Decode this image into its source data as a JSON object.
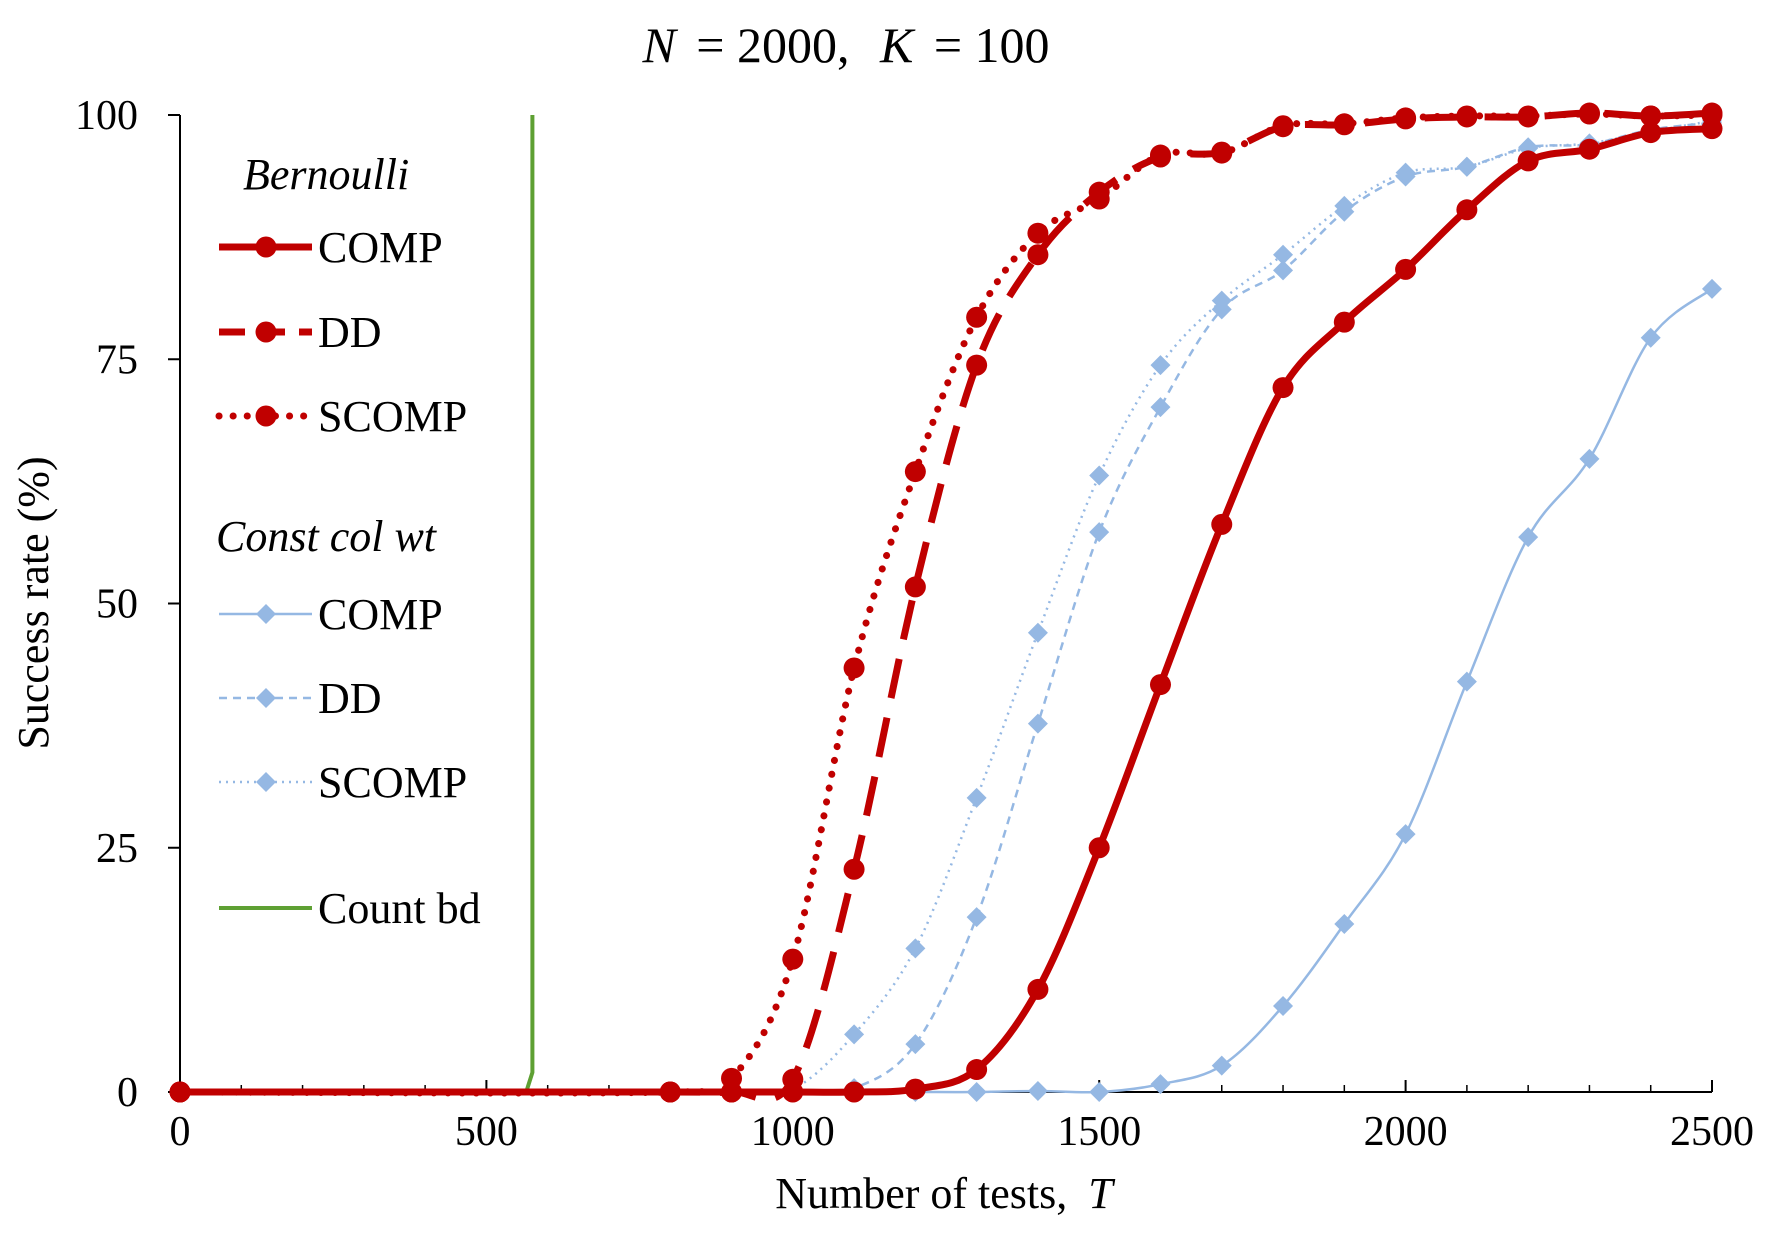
{
  "chart_data": {
    "type": "line",
    "title": {
      "n_symbol": "N",
      "n_value": "= 2000,",
      "k_symbol": "K",
      "k_value": "= 100"
    },
    "xlabel": {
      "text": "Number of tests,",
      "var": "T"
    },
    "ylabel": "Success rate (%)",
    "xlim": [
      0,
      2500
    ],
    "ylim": [
      0,
      100
    ],
    "x_ticks": [
      0,
      500,
      1000,
      1500,
      2000,
      2500
    ],
    "x_tick_labels": [
      "0",
      "500",
      "1000",
      "1500",
      "2000",
      "2500"
    ],
    "y_ticks": [
      0,
      25,
      50,
      75,
      100
    ],
    "y_tick_labels": [
      "0",
      "25",
      "50",
      "75",
      "100"
    ],
    "grid": false,
    "legend": {
      "position": "left",
      "group_headers": [
        "Bernoulli",
        "Const col wt"
      ],
      "entries": [
        {
          "group": 0,
          "label": "COMP"
        },
        {
          "group": 0,
          "label": "DD"
        },
        {
          "group": 0,
          "label": "SCOMP"
        },
        {
          "group": 1,
          "label": "COMP"
        },
        {
          "group": 1,
          "label": "DD"
        },
        {
          "group": 1,
          "label": "SCOMP"
        },
        {
          "group": 2,
          "label": "Count bd"
        }
      ]
    },
    "colors": {
      "bernoulli": "#C00000",
      "const_col_wt": "#95B8E3",
      "count_bd": "#5EA033"
    },
    "series": [
      {
        "name": "Bernoulli COMP",
        "style": "solid",
        "marker": "circle",
        "color": "#C00000",
        "x": [
          0,
          800,
          900,
          1000,
          1100,
          1200,
          1300,
          1400,
          1500,
          1600,
          1700,
          1800,
          1900,
          2000,
          2100,
          2200,
          2300,
          2400,
          2500
        ],
        "y": [
          0,
          0,
          0,
          0,
          0,
          0.3,
          2.3,
          10.5,
          25,
          41.7,
          58.1,
          72.1,
          78.8,
          84.2,
          90.3,
          95.3,
          96.5,
          98.2,
          98.6
        ]
      },
      {
        "name": "Bernoulli DD",
        "style": "dash",
        "marker": "circle",
        "color": "#C00000",
        "x": [
          0,
          800,
          900,
          1000,
          1100,
          1200,
          1300,
          1400,
          1500,
          1600,
          1700,
          1800,
          1900,
          2000,
          2100,
          2200,
          2300,
          2400,
          2500
        ],
        "y": [
          0,
          0,
          0,
          1.3,
          22.8,
          51.7,
          74.4,
          85.7,
          92.1,
          95.7,
          96.2,
          98.8,
          99,
          99.6,
          99.8,
          99.8,
          100.2,
          99.9,
          100.2
        ]
      },
      {
        "name": "Bernoulli SCOMP",
        "style": "dot",
        "marker": "circle",
        "color": "#C00000",
        "x": [
          0,
          800,
          900,
          1000,
          1100,
          1200,
          1300,
          1400,
          1500,
          1600,
          1700,
          1800,
          1900,
          2000,
          2100,
          2200,
          2300,
          2400,
          2500
        ],
        "y": [
          0,
          0,
          1.4,
          13.6,
          43.4,
          63.5,
          79.3,
          87.9,
          91.4,
          95.9,
          96.1,
          98.9,
          99.1,
          99.7,
          99.9,
          99.9,
          100.1,
          99.9,
          100
        ]
      },
      {
        "name": "Const col wt COMP",
        "style": "solid",
        "marker": "diamond",
        "color": "#95B8E3",
        "x": [
          0,
          800,
          900,
          1000,
          1100,
          1200,
          1300,
          1400,
          1500,
          1600,
          1700,
          1800,
          1900,
          2000,
          2100,
          2200,
          2300,
          2400,
          2500
        ],
        "y": [
          0,
          0,
          0,
          0,
          0,
          0,
          0,
          0.1,
          0,
          0.8,
          2.7,
          8.8,
          17.2,
          26.4,
          42,
          56.8,
          64.8,
          77.2,
          82.2
        ]
      },
      {
        "name": "Const col wt DD",
        "style": "dash",
        "marker": "diamond",
        "color": "#95B8E3",
        "x": [
          0,
          800,
          900,
          1000,
          1100,
          1200,
          1300,
          1400,
          1500,
          1600,
          1700,
          1800,
          1900,
          2000,
          2100,
          2200,
          2300,
          2400,
          2500
        ],
        "y": [
          0,
          0,
          0,
          0,
          0.4,
          4.9,
          17.9,
          37.7,
          57.3,
          70.1,
          80.1,
          84.1,
          90.1,
          93.7,
          94.7,
          96.7,
          97,
          98.5,
          99.2
        ]
      },
      {
        "name": "Const col wt SCOMP",
        "style": "dot",
        "marker": "diamond",
        "color": "#95B8E3",
        "x": [
          0,
          800,
          900,
          1000,
          1100,
          1200,
          1300,
          1400,
          1500,
          1600,
          1700,
          1800,
          1900,
          2000,
          2100,
          2200,
          2300,
          2400,
          2500
        ],
        "y": [
          0,
          0,
          0,
          0.3,
          5.9,
          14.7,
          30.1,
          47,
          63.1,
          74.4,
          81,
          85.7,
          90.7,
          94.1,
          94.7,
          96.6,
          97.1,
          98.3,
          99.4
        ]
      },
      {
        "name": "Count bd",
        "style": "solid",
        "marker": "none",
        "color": "#5EA033",
        "x": [
          0,
          565,
          575,
          575
        ],
        "y": [
          0,
          0,
          2,
          100
        ]
      }
    ]
  }
}
